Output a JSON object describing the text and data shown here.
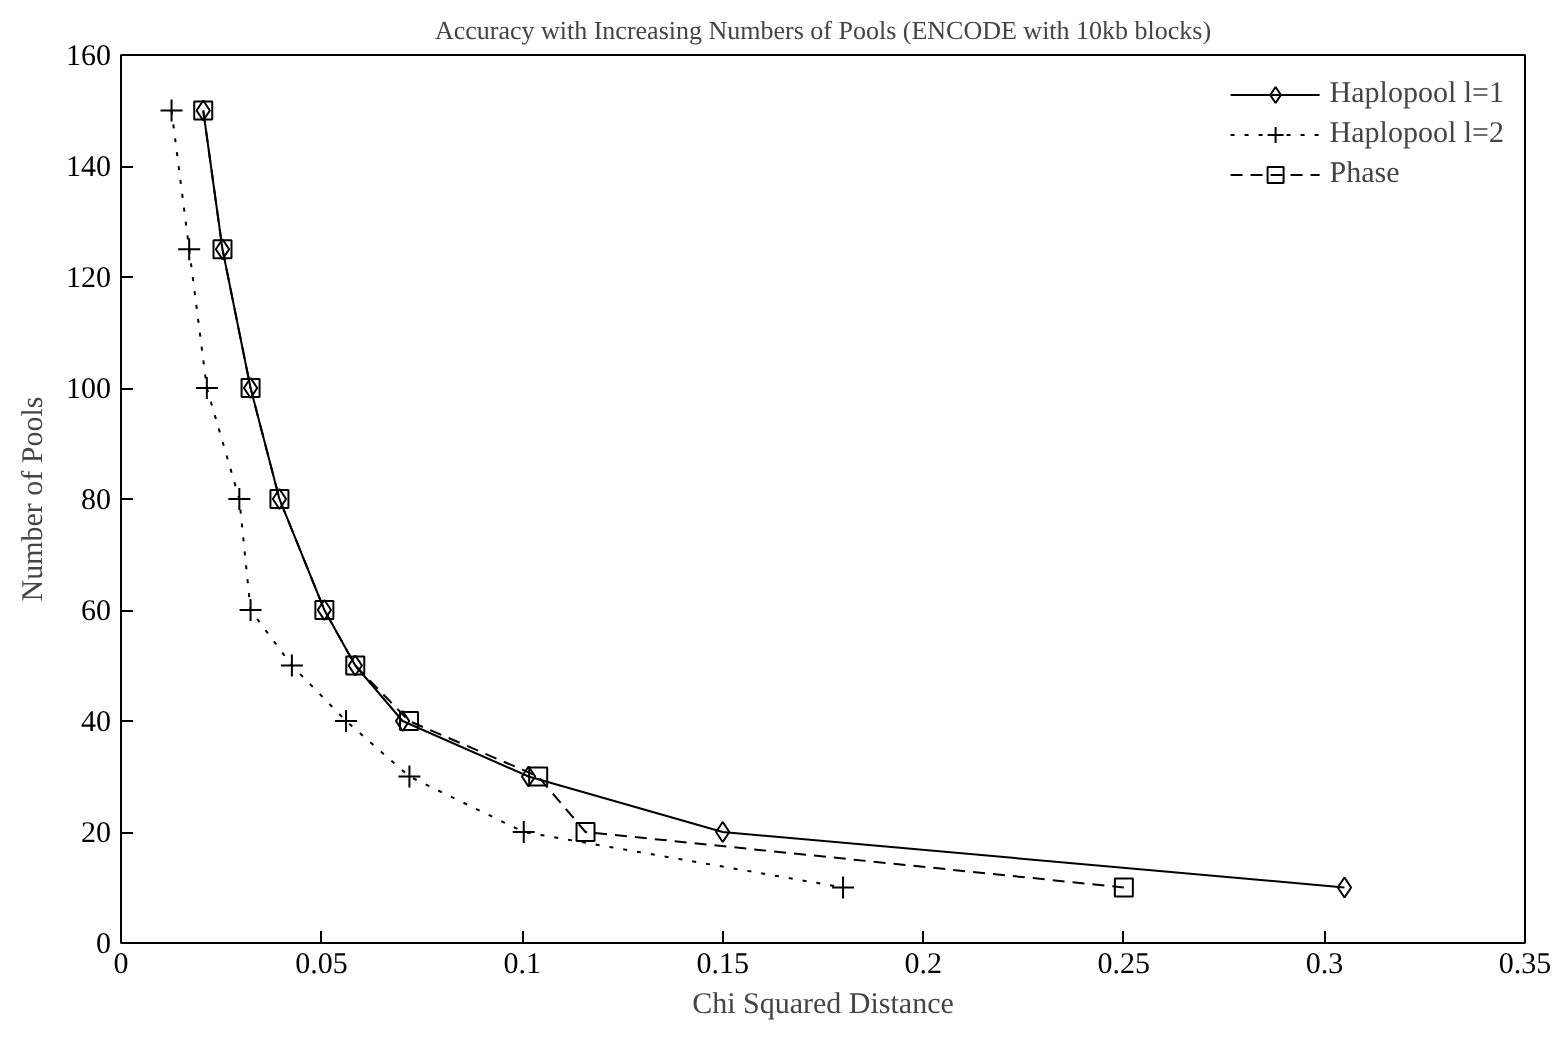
{
  "chart_data": {
    "type": "line",
    "title": "Accuracy with Increasing Numbers of Pools (ENCODE with 10kb blocks)",
    "xlabel": "Chi Squared Distance",
    "ylabel": "Number of Pools",
    "xlim": [
      0,
      0.35
    ],
    "xticks": [
      0,
      0.05,
      0.1,
      0.15,
      0.2,
      0.25,
      0.3,
      0.35
    ],
    "ylim": [
      0,
      160
    ],
    "yticks": [
      0,
      20,
      40,
      60,
      80,
      100,
      120,
      140,
      160
    ],
    "grid": false,
    "legend": "top right",
    "series": [
      {
        "name": "Haplopool l=1",
        "color": "#000000",
        "marker": "diamond",
        "line_style": "solid",
        "x": [
          0.0205,
          0.0253,
          0.0323,
          0.0395,
          0.0507,
          0.0584,
          0.0702,
          0.1016,
          0.15,
          0.305
        ],
        "values": [
          150,
          125,
          100,
          80,
          60,
          50,
          40,
          30,
          20,
          10
        ]
      },
      {
        "name": "Haplopool l=2",
        "color": "#000000",
        "marker": "cross",
        "line_style": "dotted",
        "x": [
          0.0126,
          0.017,
          0.0214,
          0.0295,
          0.0323,
          0.0426,
          0.0561,
          0.0719,
          0.1004,
          0.18
        ],
        "values": [
          150,
          125,
          100,
          80,
          60,
          50,
          40,
          30,
          20,
          10
        ]
      },
      {
        "name": "Phase",
        "color": "#000000",
        "marker": "square",
        "line_style": "dashed",
        "x": [
          0.0205,
          0.0253,
          0.0323,
          0.0395,
          0.0507,
          0.0584,
          0.0718,
          0.104,
          0.1158,
          0.25
        ],
        "values": [
          150,
          125,
          100,
          80,
          60,
          50,
          40,
          30,
          20,
          10
        ]
      }
    ]
  }
}
